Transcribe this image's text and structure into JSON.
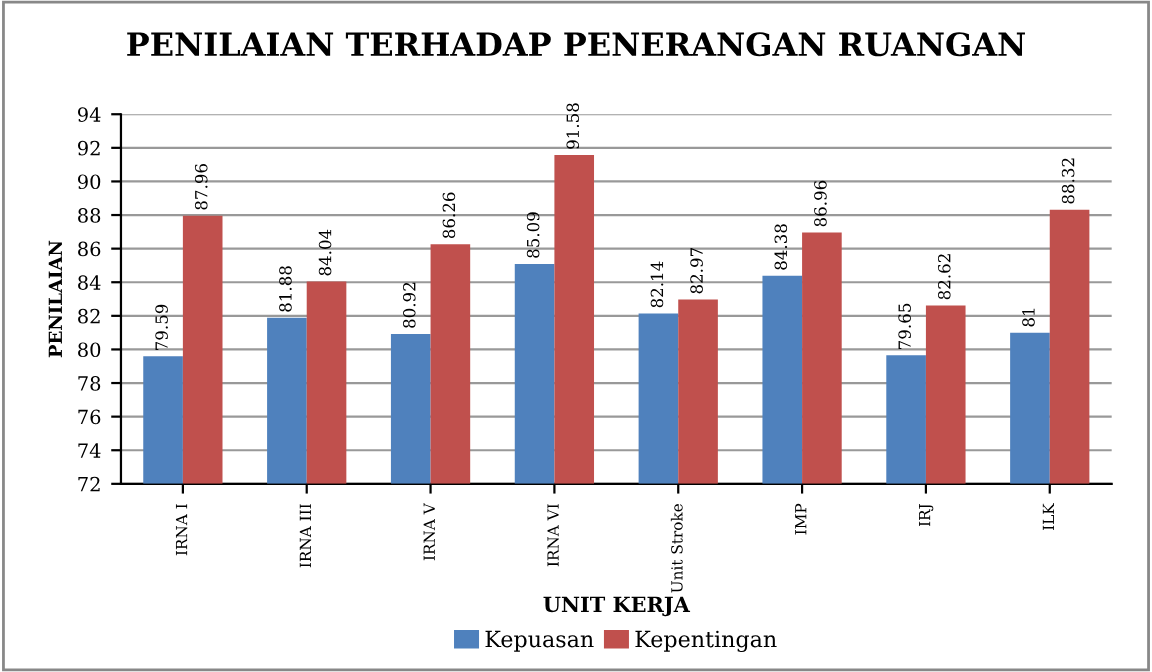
{
  "chart_data": {
    "type": "bar",
    "title": "PENILAIAN TERHADAP PENERANGAN RUANGAN",
    "xlabel": "UNIT KERJA",
    "ylabel": "PENILAIAN",
    "categories": [
      "IRNA I",
      "IRNA III",
      "IRNA V",
      "IRNA VI",
      "Unit Stroke",
      "IMP",
      "IRJ",
      "ILK"
    ],
    "series": [
      {
        "name": "Kepuasan",
        "color": "#4f81bd",
        "values": [
          79.59,
          81.88,
          80.92,
          85.09,
          82.14,
          84.38,
          79.65,
          81
        ]
      },
      {
        "name": "Kepentingan",
        "color": "#c0504d",
        "values": [
          87.96,
          84.04,
          86.26,
          91.58,
          82.97,
          86.96,
          82.62,
          88.32
        ]
      }
    ],
    "ylim": [
      72,
      94
    ],
    "yticks": [
      72,
      74,
      76,
      78,
      80,
      82,
      84,
      86,
      88,
      90,
      92,
      94
    ],
    "grid": "y",
    "legend": "bottom",
    "data_labels": true
  }
}
